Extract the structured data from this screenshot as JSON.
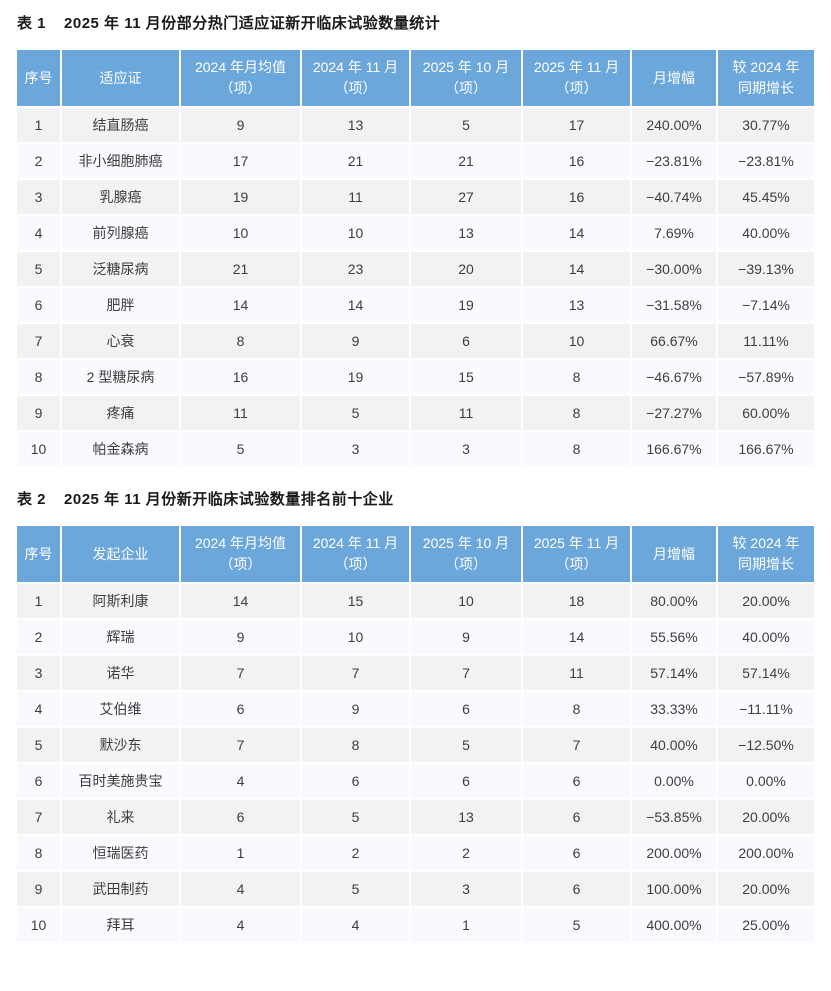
{
  "colors": {
    "header_bg": "#6CA7DC",
    "header_text": "#ffffff",
    "row_odd_bg": "#F2F2F3",
    "row_even_bg": "#F9FAFD",
    "separator": "#ffffff",
    "cell_text": "#3e3e3e",
    "title_text": "#1a1a1a"
  },
  "table1": {
    "label": "表 1",
    "title": "2025 年 11 月份部分热门适应证新开临床试验数量统计",
    "headers": [
      "序号",
      "适应证",
      "2024 年月均值\n（项）",
      "2024 年 11 月\n（项）",
      "2025 年 10 月\n（项）",
      "2025 年 11 月\n（项）",
      "月增幅",
      "较 2024 年\n同期增长"
    ],
    "rows": [
      [
        "1",
        "结直肠癌",
        "9",
        "13",
        "5",
        "17",
        "240.00%",
        "30.77%"
      ],
      [
        "2",
        "非小细胞肺癌",
        "17",
        "21",
        "21",
        "16",
        "−23.81%",
        "−23.81%"
      ],
      [
        "3",
        "乳腺癌",
        "19",
        "11",
        "27",
        "16",
        "−40.74%",
        "45.45%"
      ],
      [
        "4",
        "前列腺癌",
        "10",
        "10",
        "13",
        "14",
        "7.69%",
        "40.00%"
      ],
      [
        "5",
        "泛糖尿病",
        "21",
        "23",
        "20",
        "14",
        "−30.00%",
        "−39.13%"
      ],
      [
        "6",
        "肥胖",
        "14",
        "14",
        "19",
        "13",
        "−31.58%",
        "−7.14%"
      ],
      [
        "7",
        "心衰",
        "8",
        "9",
        "6",
        "10",
        "66.67%",
        "11.11%"
      ],
      [
        "8",
        "2 型糖尿病",
        "16",
        "19",
        "15",
        "8",
        "−46.67%",
        "−57.89%"
      ],
      [
        "9",
        "疼痛",
        "11",
        "5",
        "11",
        "8",
        "−27.27%",
        "60.00%"
      ],
      [
        "10",
        "帕金森病",
        "5",
        "3",
        "3",
        "8",
        "166.67%",
        "166.67%"
      ]
    ]
  },
  "table2": {
    "label": "表 2",
    "title": "2025 年 11 月份新开临床试验数量排名前十企业",
    "headers": [
      "序号",
      "发起企业",
      "2024 年月均值\n（项）",
      "2024 年 11 月\n（项）",
      "2025 年 10 月\n（项）",
      "2025 年 11 月\n（项）",
      "月增幅",
      "较 2024 年\n同期增长"
    ],
    "rows": [
      [
        "1",
        "阿斯利康",
        "14",
        "15",
        "10",
        "18",
        "80.00%",
        "20.00%"
      ],
      [
        "2",
        "辉瑞",
        "9",
        "10",
        "9",
        "14",
        "55.56%",
        "40.00%"
      ],
      [
        "3",
        "诺华",
        "7",
        "7",
        "7",
        "11",
        "57.14%",
        "57.14%"
      ],
      [
        "4",
        "艾伯维",
        "6",
        "9",
        "6",
        "8",
        "33.33%",
        "−11.11%"
      ],
      [
        "5",
        "默沙东",
        "7",
        "8",
        "5",
        "7",
        "40.00%",
        "−12.50%"
      ],
      [
        "6",
        "百时美施贵宝",
        "4",
        "6",
        "6",
        "6",
        "0.00%",
        "0.00%"
      ],
      [
        "7",
        "礼来",
        "6",
        "5",
        "13",
        "6",
        "−53.85%",
        "20.00%"
      ],
      [
        "8",
        "恒瑞医药",
        "1",
        "2",
        "2",
        "6",
        "200.00%",
        "200.00%"
      ],
      [
        "9",
        "武田制药",
        "4",
        "5",
        "3",
        "6",
        "100.00%",
        "20.00%"
      ],
      [
        "10",
        "拜耳",
        "4",
        "4",
        "1",
        "5",
        "400.00%",
        "25.00%"
      ]
    ]
  }
}
